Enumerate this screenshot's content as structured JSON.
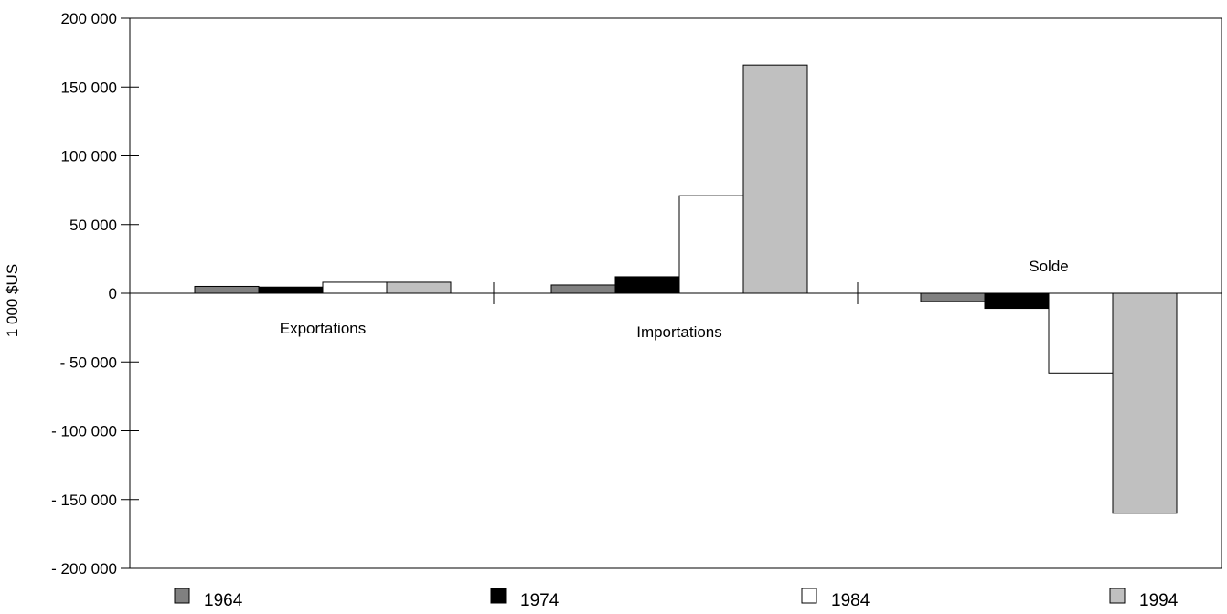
{
  "chart_data": {
    "type": "bar",
    "ylabel": "1 000 $US",
    "ylim": [
      -200000,
      200000
    ],
    "yticks": [
      200000,
      150000,
      100000,
      50000,
      0,
      -50000,
      -100000,
      -150000,
      -200000
    ],
    "ytick_labels": [
      "200 000",
      "150 000",
      "100 000",
      "50 000",
      "0",
      "- 50 000",
      "- 100 000",
      "- 150 000",
      "- 200 000"
    ],
    "categories": [
      "Exportations",
      "Importations",
      "Solde"
    ],
    "series": [
      {
        "name": "1964",
        "values": [
          5000,
          6000,
          -6000
        ],
        "color": "#808080"
      },
      {
        "name": "1974",
        "values": [
          4500,
          12000,
          -11000
        ],
        "color": "#000000"
      },
      {
        "name": "1984",
        "values": [
          8000,
          71000,
          -58000
        ],
        "color": "#ffffff"
      },
      {
        "name": "1994",
        "values": [
          8000,
          166000,
          -160000
        ],
        "color": "#c0c0c0"
      }
    ],
    "grid": false,
    "legend_position": "bottom"
  }
}
